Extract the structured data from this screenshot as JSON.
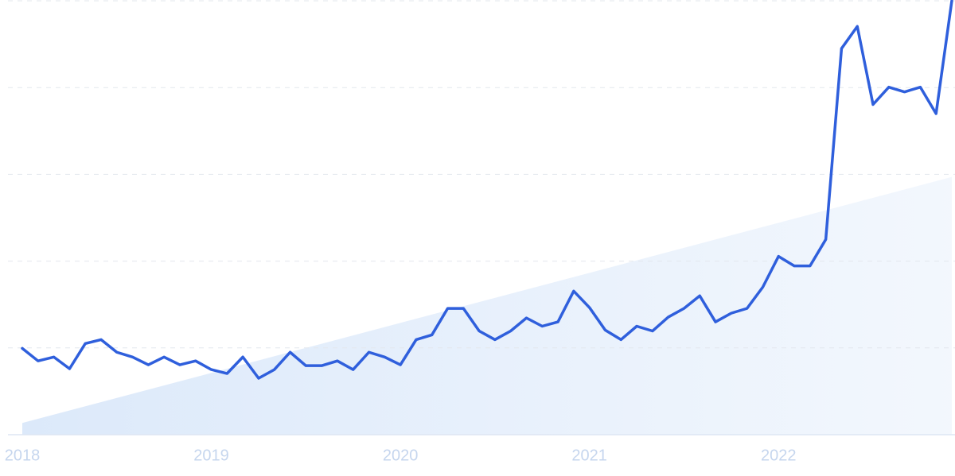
{
  "chart_data": {
    "type": "line",
    "categories": [
      "2018",
      null,
      null,
      null,
      null,
      null,
      null,
      null,
      null,
      null,
      null,
      null,
      "2019",
      null,
      null,
      null,
      null,
      null,
      null,
      null,
      null,
      null,
      null,
      null,
      "2020",
      null,
      null,
      null,
      null,
      null,
      null,
      null,
      null,
      null,
      null,
      null,
      "2021",
      null,
      null,
      null,
      null,
      null,
      null,
      null,
      null,
      null,
      null,
      null,
      "2022",
      null,
      null,
      null,
      null,
      null,
      null,
      null,
      null,
      null,
      null,
      null
    ],
    "values": [
      19.9,
      17.0,
      17.9,
      15.2,
      21.0,
      21.9,
      19.0,
      17.9,
      16.1,
      17.9,
      16.1,
      17.0,
      15.0,
      14.1,
      17.9,
      13.0,
      15.0,
      19.0,
      15.9,
      15.9,
      17.0,
      15.0,
      19.0,
      17.9,
      16.1,
      21.9,
      23.0,
      29.1,
      29.1,
      23.9,
      21.9,
      23.9,
      26.9,
      25.0,
      26.0,
      33.1,
      29.3,
      24.1,
      21.9,
      25.0,
      23.9,
      27.1,
      29.1,
      32.0,
      26.0,
      28.0,
      29.1,
      34.0,
      41.1,
      38.9,
      38.9,
      45.0,
      89.0,
      94.1,
      76.1,
      80.1,
      79.0,
      80.1,
      74.0,
      100
    ],
    "color": "#2f5fdc",
    "trend": [
      2.7,
      59.4
    ],
    "trend_color": "#dce9fa",
    "ylim": [
      0,
      100
    ],
    "yticks": [
      0,
      20,
      40,
      60,
      80,
      100
    ],
    "grid": true
  }
}
